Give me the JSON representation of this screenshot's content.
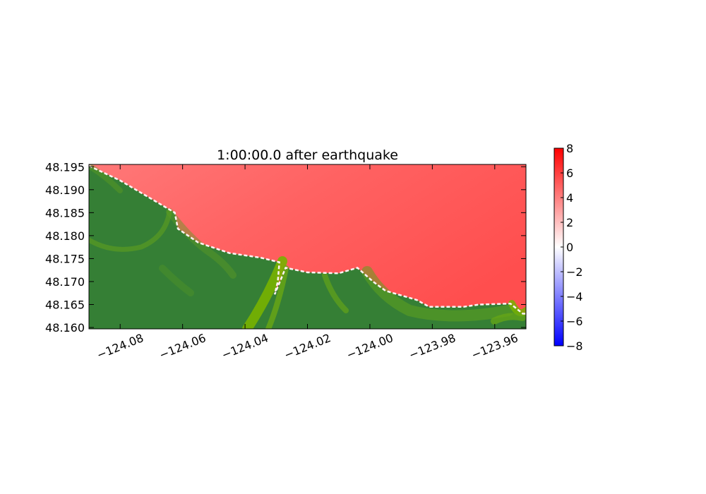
{
  "chart_data": {
    "type": "heatmap",
    "title": "1:00:00.0 after earthquake",
    "xlabel": "",
    "ylabel": "",
    "xlim": [
      -124.09,
      -123.95
    ],
    "ylim": [
      48.1597,
      48.1955
    ],
    "x_ticks": [
      -124.08,
      -124.06,
      -124.04,
      -124.02,
      -124.0,
      -123.98,
      -123.96
    ],
    "x_tick_labels": [
      "−124.08",
      "−124.06",
      "−124.04",
      "−124.02",
      "−124.00",
      "−123.98",
      "−123.96"
    ],
    "y_ticks": [
      48.195,
      48.19,
      48.185,
      48.18,
      48.175,
      48.17,
      48.165,
      48.16
    ],
    "y_tick_labels": [
      "48.195",
      "48.190",
      "48.185",
      "48.180",
      "48.175",
      "48.170",
      "48.165",
      "48.160"
    ],
    "colorbar": {
      "min": -8,
      "max": 8,
      "ticks": [
        8,
        6,
        4,
        2,
        0,
        -2,
        -4,
        -6,
        -8
      ],
      "tick_labels": [
        "8",
        "6",
        "4",
        "2",
        "0",
        "−2",
        "−4",
        "−6",
        "−8"
      ],
      "colormap": "bwr"
    },
    "water_surface_approx": 5.5,
    "shoreline": [
      [
        -124.09,
        48.1952
      ],
      [
        -124.08,
        48.192
      ],
      [
        -124.07,
        48.188
      ],
      [
        -124.0625,
        48.185
      ],
      [
        -124.0615,
        48.1815
      ],
      [
        -124.055,
        48.1785
      ],
      [
        -124.045,
        48.1762
      ],
      [
        -124.035,
        48.1752
      ],
      [
        -124.029,
        48.1742
      ],
      [
        -124.0295,
        48.17
      ],
      [
        -124.0305,
        48.1672
      ],
      [
        -124.027,
        48.173
      ],
      [
        -124.02,
        48.172
      ],
      [
        -124.01,
        48.1718
      ],
      [
        -124.004,
        48.173
      ],
      [
        -123.999,
        48.17
      ],
      [
        -123.995,
        48.168
      ],
      [
        -123.985,
        48.166
      ],
      [
        -123.981,
        48.1645
      ],
      [
        -123.97,
        48.1645
      ],
      [
        -123.965,
        48.165
      ],
      [
        -123.955,
        48.1652
      ],
      [
        -123.951,
        48.163
      ],
      [
        -123.95,
        48.163
      ]
    ],
    "colors": {
      "water": "#ff5555",
      "water_light": "#ff7777",
      "land_dark": "#357f35",
      "land_light": "#78b200",
      "shore_white": "#fff4f4"
    }
  }
}
